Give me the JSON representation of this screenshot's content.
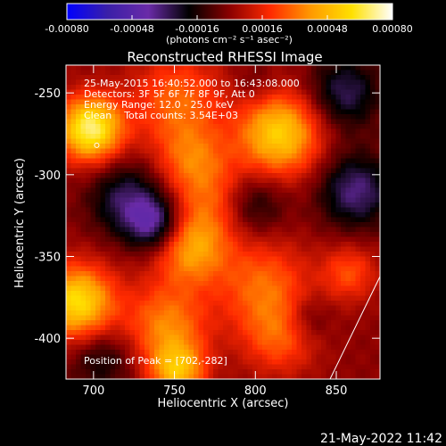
{
  "chart_data": {
    "type": "heatmap",
    "title": "Reconstructed RHESSI Image",
    "xlabel": "Heliocentric X (arcsec)",
    "ylabel": "Heliocentric Y (arcsec)",
    "xlim": [
      683,
      877
    ],
    "ylim": [
      -425,
      -233
    ],
    "x_ticks": [
      700,
      750,
      800,
      850
    ],
    "y_ticks": [
      -250,
      -300,
      -350,
      -400
    ],
    "colorbar": {
      "range": [
        -0.0008,
        0.0008
      ],
      "ticks": [
        "-0.00080",
        "-0.00048",
        "-0.00016",
        "0.00016",
        "0.00048",
        "0.00080"
      ],
      "unit_label": "(photons cm⁻² s⁻¹ asec⁻²)",
      "colormap": [
        "#0000ff",
        "#3a1fa8",
        "#6a2ba8",
        "#000000",
        "#8b0000",
        "#ff2a00",
        "#ff9a00",
        "#ffe000",
        "#ffffff"
      ]
    },
    "info_lines": [
      "25-May-2015 16:40:52.000 to 16:43:08.000",
      "Detectors: 3F 5F 6F 7F 8F 9F, Att 0",
      "Energy Range: 12.0 - 25.0 keV",
      "Clean    Total counts: 3.54E+03"
    ],
    "peak_label": "Position of Peak = [702,-282]",
    "peak": [
      702,
      -282
    ],
    "timestamp": "21-May-2022 11:42",
    "blobs": [
      {
        "x": 698,
        "y": -272,
        "v": 0.0007,
        "s": 14
      },
      {
        "x": 690,
        "y": -378,
        "v": 0.0006,
        "s": 16
      },
      {
        "x": 752,
        "y": -255,
        "v": 0.0003,
        "s": 20
      },
      {
        "x": 760,
        "y": -290,
        "v": 0.00025,
        "s": 15
      },
      {
        "x": 775,
        "y": -315,
        "v": 0.00025,
        "s": 18
      },
      {
        "x": 760,
        "y": -345,
        "v": 0.0004,
        "s": 16
      },
      {
        "x": 745,
        "y": -392,
        "v": 0.00035,
        "s": 18
      },
      {
        "x": 752,
        "y": -420,
        "v": 0.00045,
        "s": 12
      },
      {
        "x": 815,
        "y": -275,
        "v": 0.00055,
        "s": 18
      },
      {
        "x": 805,
        "y": -368,
        "v": 0.0003,
        "s": 20
      },
      {
        "x": 815,
        "y": -400,
        "v": 0.00025,
        "s": 16
      },
      {
        "x": 858,
        "y": -360,
        "v": 0.00025,
        "s": 12
      },
      {
        "x": 720,
        "y": -315,
        "v": -0.0003,
        "s": 16
      },
      {
        "x": 738,
        "y": -330,
        "v": -0.0004,
        "s": 12
      },
      {
        "x": 798,
        "y": -318,
        "v": -0.00025,
        "s": 14
      },
      {
        "x": 855,
        "y": -250,
        "v": -0.0003,
        "s": 16
      },
      {
        "x": 862,
        "y": -310,
        "v": -0.00035,
        "s": 16
      },
      {
        "x": 705,
        "y": -413,
        "v": -0.0002,
        "s": 14
      },
      {
        "x": 832,
        "y": -388,
        "v": -0.00015,
        "s": 10
      },
      {
        "x": 800,
        "y": -245,
        "v": -0.0001,
        "s": 10
      }
    ]
  }
}
